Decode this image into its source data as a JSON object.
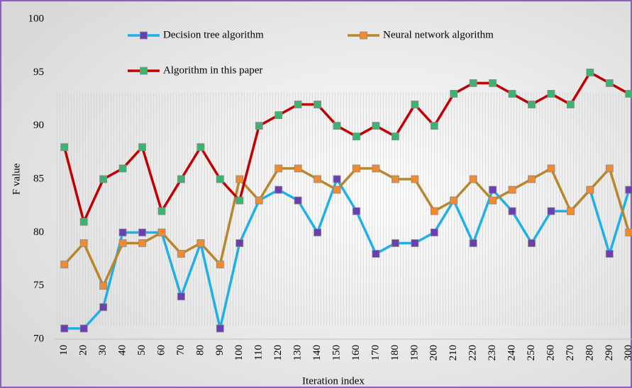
{
  "chart_data": {
    "type": "line",
    "xlabel": "Iteration index",
    "ylabel": "F value",
    "categories": [
      "10",
      "20",
      "30",
      "40",
      "50",
      "60",
      "70",
      "80",
      "90",
      "100",
      "110",
      "120",
      "130",
      "140",
      "150",
      "160",
      "170",
      "180",
      "190",
      "200",
      "210",
      "220",
      "230",
      "240",
      "250",
      "260",
      "270",
      "280",
      "290",
      "300"
    ],
    "ylim": [
      70,
      100
    ],
    "yticks": [
      70,
      75,
      80,
      85,
      90,
      95,
      100
    ],
    "series": [
      {
        "name": "Decision tree algorithm",
        "color": "#1fb0e8",
        "marker_color": "#6a3fb0",
        "values": [
          71,
          71,
          73,
          80,
          80,
          80,
          74,
          79,
          71,
          79,
          83,
          84,
          83,
          80,
          85,
          82,
          78,
          79,
          79,
          80,
          83,
          79,
          84,
          82,
          79,
          82,
          82,
          84,
          78,
          84
        ]
      },
      {
        "name": "Neural network algorithm",
        "color": "#b8862b",
        "marker_color": "#f28a30",
        "values": [
          77,
          79,
          75,
          79,
          79,
          80,
          78,
          79,
          77,
          85,
          83,
          86,
          86,
          85,
          84,
          86,
          86,
          85,
          85,
          82,
          83,
          85,
          83,
          84,
          85,
          86,
          82,
          84,
          86,
          80
        ]
      },
      {
        "name": "Algorithm in this paper",
        "color": "#c00000",
        "marker_color": "#3cb371",
        "values": [
          88,
          81,
          85,
          86,
          88,
          82,
          85,
          88,
          85,
          83,
          90,
          91,
          92,
          92,
          90,
          89,
          90,
          89,
          92,
          90,
          93,
          94,
          94,
          93,
          92,
          93,
          92,
          95,
          94,
          93
        ]
      }
    ]
  }
}
